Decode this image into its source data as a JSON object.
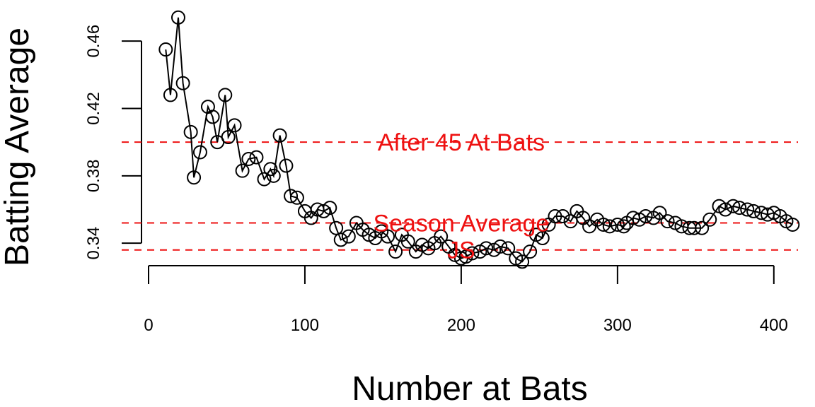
{
  "chart_data": {
    "type": "line",
    "xlabel": "Number at Bats",
    "ylabel": "Batting Average",
    "xlim": [
      0,
      420
    ],
    "ylim": [
      0.33,
      0.476
    ],
    "x_ticks": [
      0,
      100,
      200,
      300,
      400
    ],
    "x_tick_labels": [
      "0",
      "100",
      "200",
      "300",
      "400"
    ],
    "y_ticks": [
      0.34,
      0.38,
      0.42,
      0.46
    ],
    "y_tick_labels": [
      "0.34",
      "0.38",
      "0.42",
      "0.46"
    ],
    "grid": false,
    "line_color": "#000000",
    "reference_color": "#ee1111",
    "reference_lines": [
      {
        "label": "After 45 At Bats",
        "y": 0.4,
        "label_x": 200
      },
      {
        "label": "Season Average",
        "y": 0.352,
        "label_x": 200
      },
      {
        "label": "JS",
        "y": 0.336,
        "label_x": 200
      }
    ],
    "series": [
      {
        "x": [
          11,
          14,
          19,
          22,
          27,
          29,
          33,
          38,
          41,
          44,
          49,
          51,
          55,
          60,
          64,
          69,
          74,
          78,
          80,
          84,
          88,
          91,
          95,
          100,
          104,
          108,
          112,
          116,
          120,
          123,
          128,
          133,
          137,
          141,
          145,
          149,
          153,
          158,
          162,
          166,
          171,
          175,
          179,
          183,
          187,
          192,
          196,
          200,
          203,
          207,
          212,
          216,
          221,
          225,
          230,
          235,
          239,
          244,
          248,
          252,
          256,
          260,
          265,
          270,
          274,
          278,
          282,
          287,
          291,
          295,
          300,
          304,
          306,
          310,
          314,
          318,
          323,
          327,
          332,
          337,
          341,
          346,
          349,
          354,
          359,
          365,
          369,
          374,
          378,
          383,
          387,
          392,
          396,
          400,
          404,
          408,
          412
        ],
        "y": [
          0.455,
          0.428,
          0.474,
          0.435,
          0.406,
          0.379,
          0.394,
          0.421,
          0.415,
          0.4,
          0.428,
          0.403,
          0.41,
          0.383,
          0.39,
          0.391,
          0.378,
          0.384,
          0.38,
          0.404,
          0.386,
          0.368,
          0.367,
          0.359,
          0.355,
          0.36,
          0.359,
          0.361,
          0.349,
          0.342,
          0.344,
          0.352,
          0.348,
          0.345,
          0.343,
          0.347,
          0.344,
          0.335,
          0.345,
          0.341,
          0.335,
          0.339,
          0.337,
          0.34,
          0.344,
          0.338,
          0.333,
          0.331,
          0.332,
          0.334,
          0.335,
          0.337,
          0.336,
          0.338,
          0.337,
          0.331,
          0.329,
          0.335,
          0.345,
          0.343,
          0.351,
          0.356,
          0.356,
          0.353,
          0.359,
          0.355,
          0.35,
          0.354,
          0.351,
          0.35,
          0.351,
          0.35,
          0.352,
          0.355,
          0.354,
          0.356,
          0.355,
          0.358,
          0.353,
          0.352,
          0.35,
          0.349,
          0.349,
          0.349,
          0.354,
          0.362,
          0.36,
          0.362,
          0.361,
          0.36,
          0.359,
          0.358,
          0.357,
          0.358,
          0.356,
          0.353,
          0.351
        ]
      }
    ]
  }
}
